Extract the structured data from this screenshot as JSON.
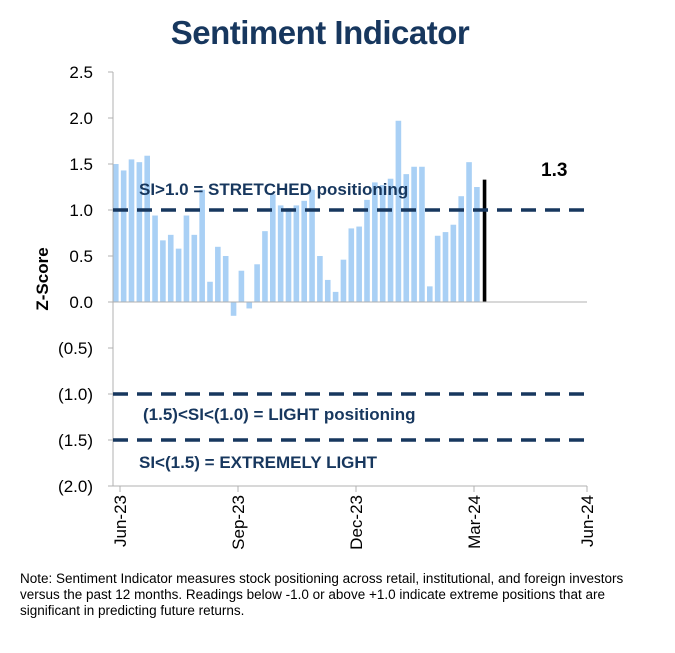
{
  "chart_data": {
    "type": "bar",
    "title": "Sentiment Indicator",
    "ylabel": "Z-Score",
    "ylim": [
      -2.0,
      2.5
    ],
    "y_ticks": [
      2.5,
      2.0,
      1.5,
      1.0,
      0.5,
      0.0,
      -0.5,
      -1.0,
      -1.5,
      -2.0
    ],
    "y_tick_labels": [
      "2.5",
      "2.0",
      "1.5",
      "1.0",
      "0.5",
      "0.0",
      "(0.5)",
      "(1.0)",
      "(1.5)",
      "(2.0)"
    ],
    "x_ticks": [
      "Jun-23",
      "Sep-23",
      "Dec-23",
      "Mar-24",
      "Jun-24"
    ],
    "values": [
      1.5,
      1.43,
      1.55,
      1.52,
      1.59,
      0.94,
      0.67,
      0.73,
      0.58,
      0.94,
      0.73,
      1.22,
      0.22,
      0.6,
      0.5,
      -0.15,
      0.34,
      -0.07,
      0.41,
      0.77,
      1.17,
      1.05,
      1.02,
      1.05,
      1.1,
      1.22,
      0.5,
      0.24,
      0.11,
      0.46,
      0.8,
      0.82,
      1.11,
      1.3,
      1.27,
      1.34,
      1.97,
      1.39,
      1.47,
      1.47,
      0.17,
      0.72,
      0.76,
      0.84,
      1.15,
      1.52,
      1.25,
      1.33
    ],
    "latest_value": 1.3,
    "latest_label": "1.3",
    "bar_color": "#a9d0f5",
    "latest_bar_color": "#000000",
    "threshold_color": "#17375e",
    "thresholds": [
      {
        "value": 1.0,
        "label": "SI>1.0 = STRETCHED positioning"
      },
      {
        "value": -1.0,
        "label": "(1.5)<SI<(1.0) = LIGHT positioning"
      },
      {
        "value": -1.5,
        "label": "SI<(1.5) = EXTREMELY LIGHT"
      }
    ],
    "grid": false,
    "legend": "none"
  },
  "note": "Note: Sentiment Indicator measures stock positioning across retail, institutional, and foreign investors versus the past 12 months. Readings below -1.0 or above +1.0 indicate extreme positions that are significant in predicting future returns."
}
